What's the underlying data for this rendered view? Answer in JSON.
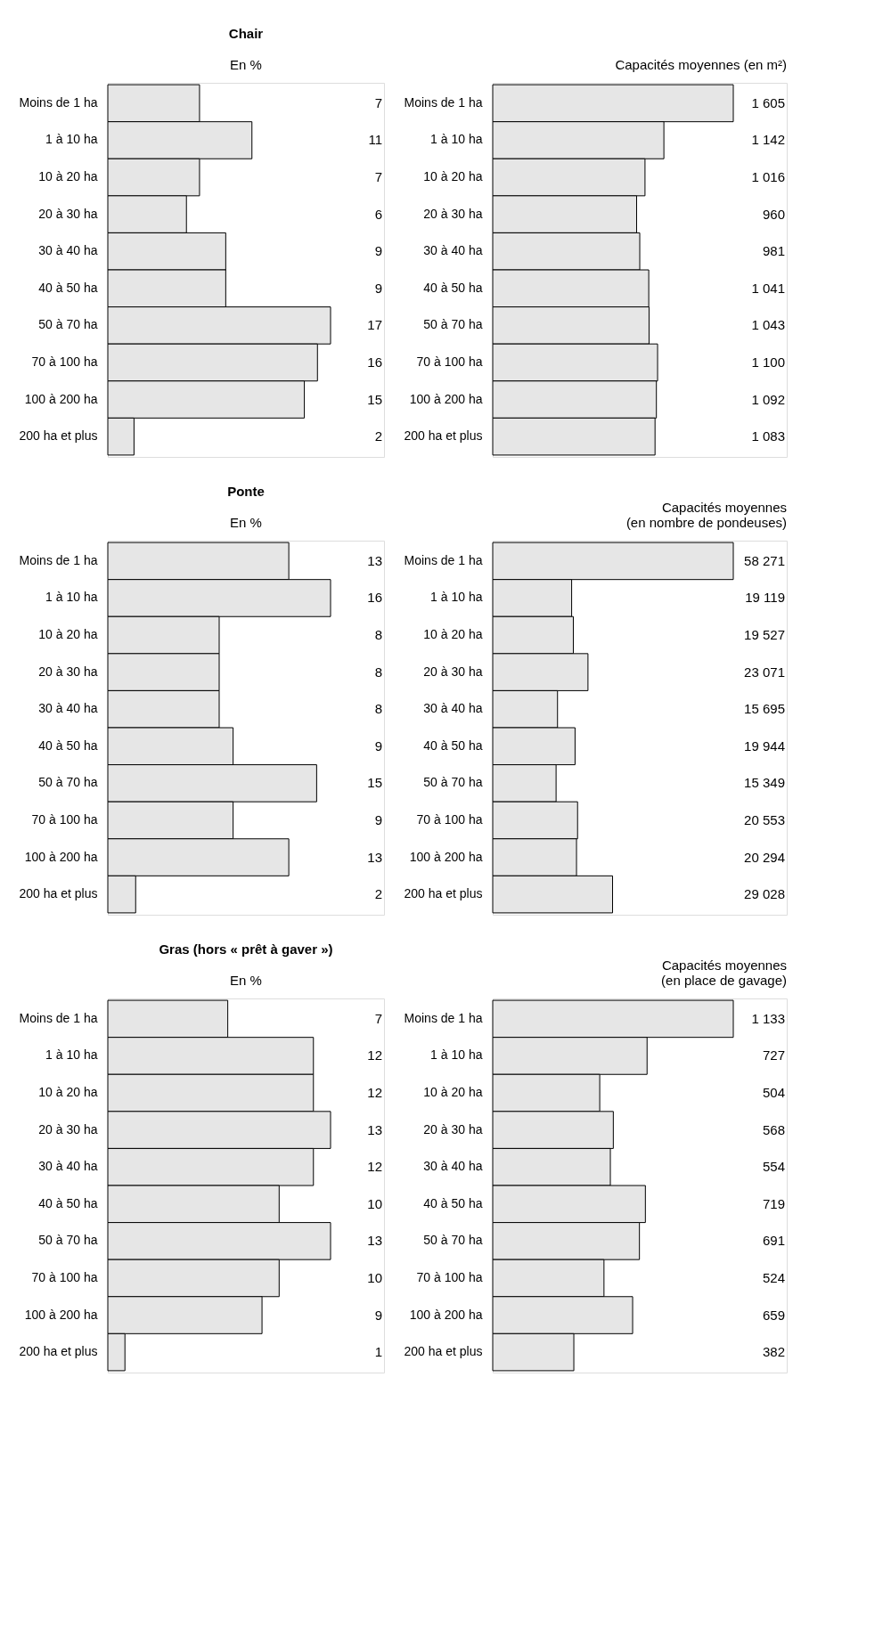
{
  "chart_data": [
    {
      "type": "bar",
      "orientation": "horizontal",
      "title": "Chair",
      "subtitle": "En %",
      "color": "#e6e6e6",
      "categories": [
        "Moins de 1 ha",
        "1 à 10 ha",
        "10 à 20 ha",
        "20 à 30 ha",
        "30 à 40 ha",
        "40 à 50 ha",
        "50 à 70 ha",
        "70 à 100 ha",
        "100 à 200 ha",
        "200 ha et plus"
      ],
      "values": [
        7,
        11,
        7,
        6,
        9,
        9,
        17,
        16,
        15,
        2
      ],
      "value_labels": [
        "7",
        "11",
        "7",
        "6",
        "9",
        "9",
        "17",
        "16",
        "15",
        "2"
      ]
    },
    {
      "type": "bar",
      "orientation": "horizontal",
      "subtitle": "Capacités moyennes (en m²)",
      "color": "#e6e6e6",
      "categories": [
        "Moins de 1 ha",
        "1 à 10 ha",
        "10 à 20 ha",
        "20 à 30 ha",
        "30 à 40 ha",
        "40 à 50 ha",
        "50 à 70 ha",
        "70 à 100 ha",
        "100 à 200 ha",
        "200 ha et plus"
      ],
      "values": [
        1605,
        1142,
        1016,
        960,
        981,
        1041,
        1043,
        1100,
        1092,
        1083
      ],
      "value_labels": [
        "1 605",
        "1 142",
        "1 016",
        "960",
        "981",
        "1 041",
        "1 043",
        "1 100",
        "1 092",
        "1 083"
      ]
    },
    {
      "type": "bar",
      "orientation": "horizontal",
      "title": "Ponte",
      "subtitle": "En %",
      "color": "#e6e6e6",
      "categories": [
        "Moins de 1 ha",
        "1 à 10 ha",
        "10 à 20 ha",
        "20 à 30 ha",
        "30 à 40 ha",
        "40 à 50 ha",
        "50 à 70 ha",
        "70 à 100 ha",
        "100 à 200 ha",
        "200 ha et plus"
      ],
      "values": [
        13,
        16,
        8,
        8,
        8,
        9,
        15,
        9,
        13,
        2
      ],
      "value_labels": [
        "13",
        "16",
        "8",
        "8",
        "8",
        "9",
        "15",
        "9",
        "13",
        "2"
      ]
    },
    {
      "type": "bar",
      "orientation": "horizontal",
      "subtitle": "Capacités moyennes\n(en nombre de pondeuses)",
      "color": "#e6e6e6",
      "categories": [
        "Moins de 1 ha",
        "1 à 10 ha",
        "10 à 20 ha",
        "20 à 30 ha",
        "30 à 40 ha",
        "40 à 50 ha",
        "50 à 70 ha",
        "70 à 100 ha",
        "100 à 200 ha",
        "200 ha et plus"
      ],
      "values": [
        58271,
        19119,
        19527,
        23071,
        15695,
        19944,
        15349,
        20553,
        20294,
        29028
      ],
      "value_labels": [
        "58 271",
        "19 119",
        "19 527",
        "23 071",
        "15 695",
        "19 944",
        "15 349",
        "20 553",
        "20 294",
        "29 028"
      ]
    },
    {
      "type": "bar",
      "orientation": "horizontal",
      "title": "Gras (hors « prêt à gaver »)",
      "subtitle": "En %",
      "color": "#e6e6e6",
      "categories": [
        "Moins de 1 ha",
        "1 à 10 ha",
        "10 à 20 ha",
        "20 à 30 ha",
        "30 à 40 ha",
        "40 à 50 ha",
        "50 à 70 ha",
        "70 à 100 ha",
        "100 à 200 ha",
        "200 ha et plus"
      ],
      "values": [
        7,
        12,
        12,
        13,
        12,
        10,
        13,
        10,
        9,
        1
      ],
      "value_labels": [
        "7",
        "12",
        "12",
        "13",
        "12",
        "10",
        "13",
        "10",
        "9",
        "1"
      ]
    },
    {
      "type": "bar",
      "orientation": "horizontal",
      "subtitle": "Capacités moyennes\n(en place de gavage)",
      "color": "#e6e6e6",
      "categories": [
        "Moins de 1 ha",
        "1 à 10 ha",
        "10 à 20 ha",
        "20 à 30 ha",
        "30 à 40 ha",
        "40 à 50 ha",
        "50 à 70 ha",
        "70 à 100 ha",
        "100 à 200 ha",
        "200 ha et plus"
      ],
      "values": [
        1133,
        727,
        504,
        568,
        554,
        719,
        691,
        524,
        659,
        382
      ],
      "value_labels": [
        "1 133",
        "727",
        "504",
        "568",
        "554",
        "719",
        "691",
        "524",
        "659",
        "382"
      ]
    }
  ]
}
